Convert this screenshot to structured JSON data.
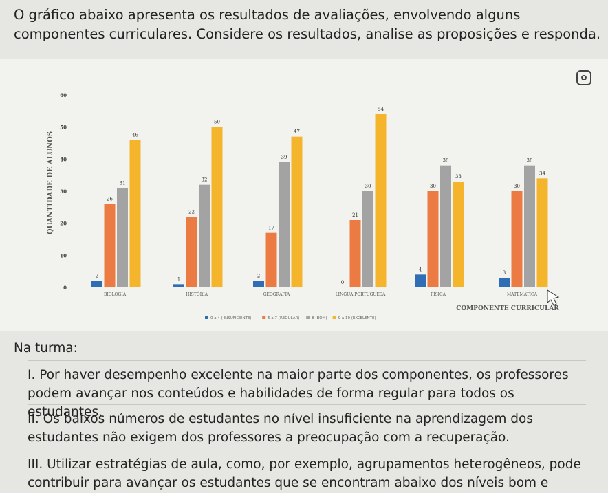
{
  "intro_text": "O gráfico abaixo apresenta os resultados de avaliações, envolvendo alguns componentes curriculares. Considere os resultados, analise as proposições e responda.",
  "chart_data": {
    "type": "bar",
    "title": "",
    "ylabel": "QUANTIDADE DE ALUNOS",
    "xlabel": "COMPONENTE CURRICULAR",
    "ylim": [
      0,
      60
    ],
    "yticks": [
      0,
      10,
      20,
      30,
      40,
      50,
      60
    ],
    "categories": [
      "BIOLOGIA",
      "HISTÓRIA",
      "GEOGRAFIA",
      "LÍNGUA PORTUGUESA",
      "FÍSICA",
      "MATEMÁTICA"
    ],
    "series": [
      {
        "name": "0 a 4 ( INSUFICIENTE)",
        "color": "#2f6eb5",
        "values": [
          2,
          1,
          2,
          0,
          4,
          3
        ]
      },
      {
        "name": "5 a 7 (REGULAR)",
        "color": "#ec7a43",
        "values": [
          26,
          22,
          17,
          21,
          30,
          30
        ]
      },
      {
        "name": "8 (BOM)",
        "color": "#a3a3a3",
        "values": [
          31,
          32,
          39,
          30,
          38,
          38
        ]
      },
      {
        "name": "9 a 10 (EXCELENTE)",
        "color": "#f4b52d",
        "values": [
          46,
          50,
          47,
          54,
          33,
          34
        ]
      }
    ],
    "legend_position": "bottom"
  },
  "na_turma": "Na turma:",
  "propositions": [
    "I. Por haver desempenho excelente na maior parte dos componentes, os professores podem avançar nos conteúdos e habilidades de forma regular para todos os estudantes.",
    "II. Os baixos números de estudantes no nível insuficiente na aprendizagem dos estudantes não exigem dos professores a preocupação com a recuperação.",
    "III. Utilizar estratégias de aula, como, por exemplo, agrupamentos heterogêneos, pode contribuir para avançar os estudantes que se encontram abaixo dos níveis bom e"
  ]
}
